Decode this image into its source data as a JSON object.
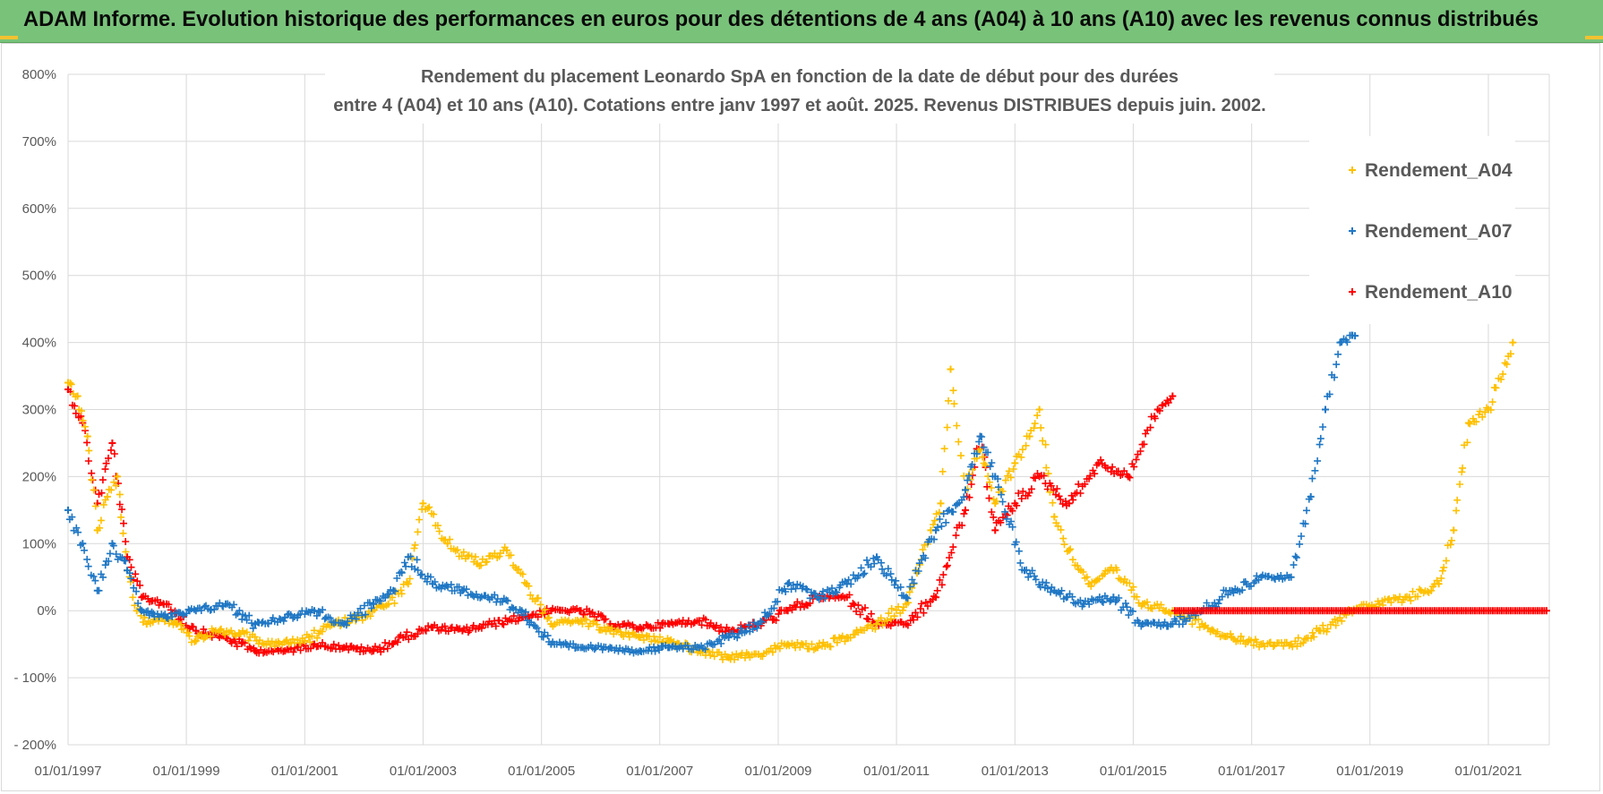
{
  "banner": {
    "title": "ADAM Informe. Evolution historique des performances en euros pour des détentions de 4 ans (A04) à 10 ans (A10) avec les revenus connus distribués",
    "background": "#79c27a"
  },
  "chart_data": {
    "type": "scatter",
    "title_lines": [
      "Rendement du placement Leonardo SpA en fonction de la date de début pour des durées",
      "entre 4 (A04) et 10 ans (A10). Cotations entre janv 1997 et août. 2025. Revenus DISTRIBUES depuis juin. 2002."
    ],
    "xlabel": "",
    "ylabel": "",
    "x_ticks": [
      "01/01/1997",
      "01/01/1999",
      "01/01/2001",
      "01/01/2003",
      "01/01/2005",
      "01/01/2007",
      "01/01/2009",
      "01/01/2011",
      "01/01/2013",
      "01/01/2015",
      "01/01/2017",
      "01/01/2019",
      "01/01/2021"
    ],
    "x_range": [
      "1997-01-01",
      "2022-01-01"
    ],
    "y_ticks": [
      "800%",
      "700%",
      "600%",
      "500%",
      "400%",
      "300%",
      "200%",
      "100%",
      "0%",
      "- 100%",
      "- 200%"
    ],
    "y_range": [
      -200,
      800
    ],
    "grid": true,
    "legend_position": "top-right",
    "marker": "+",
    "series": [
      {
        "name": "Rendement_A04",
        "color": "#ffc000",
        "points": [
          [
            "1997-01-01",
            340
          ],
          [
            "1997-03-01",
            320
          ],
          [
            "1997-05-01",
            260
          ],
          [
            "1997-07-01",
            120
          ],
          [
            "1997-09-01",
            170
          ],
          [
            "1997-11-01",
            200
          ],
          [
            "1998-01-01",
            60
          ],
          [
            "1998-03-01",
            0
          ],
          [
            "1998-05-01",
            -20
          ],
          [
            "1998-08-01",
            -10
          ],
          [
            "1998-11-01",
            -20
          ],
          [
            "1999-03-01",
            -45
          ],
          [
            "1999-07-01",
            -30
          ],
          [
            "1999-12-01",
            -35
          ],
          [
            "2000-06-01",
            -50
          ],
          [
            "2001-01-01",
            -45
          ],
          [
            "2001-07-01",
            -20
          ],
          [
            "2001-12-01",
            -10
          ],
          [
            "2002-06-01",
            10
          ],
          [
            "2002-10-01",
            40
          ],
          [
            "2003-01-01",
            160
          ],
          [
            "2003-06-01",
            100
          ],
          [
            "2003-12-01",
            70
          ],
          [
            "2004-06-01",
            90
          ],
          [
            "2004-10-01",
            40
          ],
          [
            "2005-03-01",
            -20
          ],
          [
            "2005-09-01",
            -15
          ],
          [
            "2006-03-01",
            -30
          ],
          [
            "2006-09-01",
            -40
          ],
          [
            "2007-03-01",
            -45
          ],
          [
            "2007-09-01",
            -60
          ],
          [
            "2008-03-01",
            -70
          ],
          [
            "2008-09-01",
            -65
          ],
          [
            "2009-03-01",
            -50
          ],
          [
            "2009-09-01",
            -55
          ],
          [
            "2010-03-01",
            -40
          ],
          [
            "2010-09-01",
            -20
          ],
          [
            "2011-03-01",
            10
          ],
          [
            "2011-08-01",
            120
          ],
          [
            "2011-10-01",
            160
          ],
          [
            "2011-12-01",
            360
          ],
          [
            "2012-03-01",
            180
          ],
          [
            "2012-06-01",
            240
          ],
          [
            "2012-09-01",
            160
          ],
          [
            "2013-01-01",
            220
          ],
          [
            "2013-04-01",
            260
          ],
          [
            "2013-06-01",
            300
          ],
          [
            "2013-09-01",
            140
          ],
          [
            "2013-12-01",
            90
          ],
          [
            "2014-04-01",
            40
          ],
          [
            "2014-09-01",
            60
          ],
          [
            "2015-03-01",
            10
          ],
          [
            "2015-09-01",
            0
          ],
          [
            "2016-03-01",
            -20
          ],
          [
            "2016-09-01",
            -40
          ],
          [
            "2017-03-01",
            -50
          ],
          [
            "2017-09-01",
            -50
          ],
          [
            "2018-03-01",
            -30
          ],
          [
            "2018-09-01",
            0
          ],
          [
            "2019-03-01",
            10
          ],
          [
            "2019-09-01",
            20
          ],
          [
            "2020-03-01",
            40
          ],
          [
            "2020-06-01",
            120
          ],
          [
            "2020-09-01",
            280
          ],
          [
            "2021-01-01",
            300
          ],
          [
            "2021-06-01",
            400
          ]
        ]
      },
      {
        "name": "Rendement_A07",
        "color": "#1f77c4",
        "points": [
          [
            "1997-01-01",
            150
          ],
          [
            "1997-04-01",
            100
          ],
          [
            "1997-07-01",
            30
          ],
          [
            "1997-10-01",
            100
          ],
          [
            "1998-01-01",
            60
          ],
          [
            "1998-04-01",
            0
          ],
          [
            "1998-09-01",
            -10
          ],
          [
            "1999-03-01",
            0
          ],
          [
            "1999-09-01",
            10
          ],
          [
            "2000-03-01",
            -20
          ],
          [
            "2000-09-01",
            -10
          ],
          [
            "2001-03-01",
            0
          ],
          [
            "2001-09-01",
            -20
          ],
          [
            "2002-03-01",
            10
          ],
          [
            "2002-07-01",
            30
          ],
          [
            "2002-10-01",
            80
          ],
          [
            "2003-03-01",
            40
          ],
          [
            "2003-09-01",
            30
          ],
          [
            "2004-03-01",
            20
          ],
          [
            "2004-09-01",
            0
          ],
          [
            "2005-03-01",
            -50
          ],
          [
            "2005-09-01",
            -55
          ],
          [
            "2006-03-01",
            -55
          ],
          [
            "2006-09-01",
            -60
          ],
          [
            "2007-03-01",
            -55
          ],
          [
            "2007-09-01",
            -55
          ],
          [
            "2008-03-01",
            -40
          ],
          [
            "2008-09-01",
            -20
          ],
          [
            "2009-03-01",
            40
          ],
          [
            "2009-09-01",
            20
          ],
          [
            "2010-03-01",
            40
          ],
          [
            "2010-09-01",
            80
          ],
          [
            "2011-03-01",
            20
          ],
          [
            "2011-09-01",
            120
          ],
          [
            "2012-03-01",
            180
          ],
          [
            "2012-06-01",
            260
          ],
          [
            "2012-09-01",
            200
          ],
          [
            "2013-03-01",
            60
          ],
          [
            "2013-09-01",
            30
          ],
          [
            "2014-03-01",
            10
          ],
          [
            "2014-09-01",
            20
          ],
          [
            "2015-03-01",
            -20
          ],
          [
            "2015-09-01",
            -20
          ],
          [
            "2016-03-01",
            0
          ],
          [
            "2016-09-01",
            30
          ],
          [
            "2017-03-01",
            50
          ],
          [
            "2017-09-01",
            50
          ],
          [
            "2018-01-01",
            170
          ],
          [
            "2018-04-01",
            300
          ],
          [
            "2018-07-01",
            400
          ],
          [
            "2018-10-01",
            410
          ]
        ]
      },
      {
        "name": "Rendement_A10",
        "color": "#ff0000",
        "points": [
          [
            "1997-01-01",
            330
          ],
          [
            "1997-04-01",
            280
          ],
          [
            "1997-07-01",
            160
          ],
          [
            "1997-10-01",
            250
          ],
          [
            "1998-01-01",
            80
          ],
          [
            "1998-04-01",
            20
          ],
          [
            "1998-09-01",
            10
          ],
          [
            "1999-03-01",
            -30
          ],
          [
            "1999-09-01",
            -40
          ],
          [
            "2000-03-01",
            -60
          ],
          [
            "2000-09-01",
            -60
          ],
          [
            "2001-03-01",
            -50
          ],
          [
            "2001-09-01",
            -55
          ],
          [
            "2002-03-01",
            -60
          ],
          [
            "2002-09-01",
            -40
          ],
          [
            "2003-03-01",
            -25
          ],
          [
            "2003-09-01",
            -30
          ],
          [
            "2004-03-01",
            -20
          ],
          [
            "2004-09-01",
            -10
          ],
          [
            "2005-03-01",
            0
          ],
          [
            "2005-09-01",
            0
          ],
          [
            "2006-03-01",
            -20
          ],
          [
            "2006-09-01",
            -25
          ],
          [
            "2007-03-01",
            -20
          ],
          [
            "2007-09-01",
            -15
          ],
          [
            "2008-03-01",
            -30
          ],
          [
            "2008-09-01",
            -20
          ],
          [
            "2009-03-01",
            0
          ],
          [
            "2009-09-01",
            20
          ],
          [
            "2010-03-01",
            20
          ],
          [
            "2010-09-01",
            -20
          ],
          [
            "2011-03-01",
            -20
          ],
          [
            "2011-09-01",
            20
          ],
          [
            "2012-03-01",
            150
          ],
          [
            "2012-06-01",
            260
          ],
          [
            "2012-09-01",
            120
          ],
          [
            "2013-01-01",
            160
          ],
          [
            "2013-06-01",
            200
          ],
          [
            "2013-12-01",
            160
          ],
          [
            "2014-06-01",
            220
          ],
          [
            "2014-12-01",
            200
          ],
          [
            "2015-06-01",
            300
          ],
          [
            "2015-09-01",
            320
          ]
        ]
      }
    ]
  }
}
